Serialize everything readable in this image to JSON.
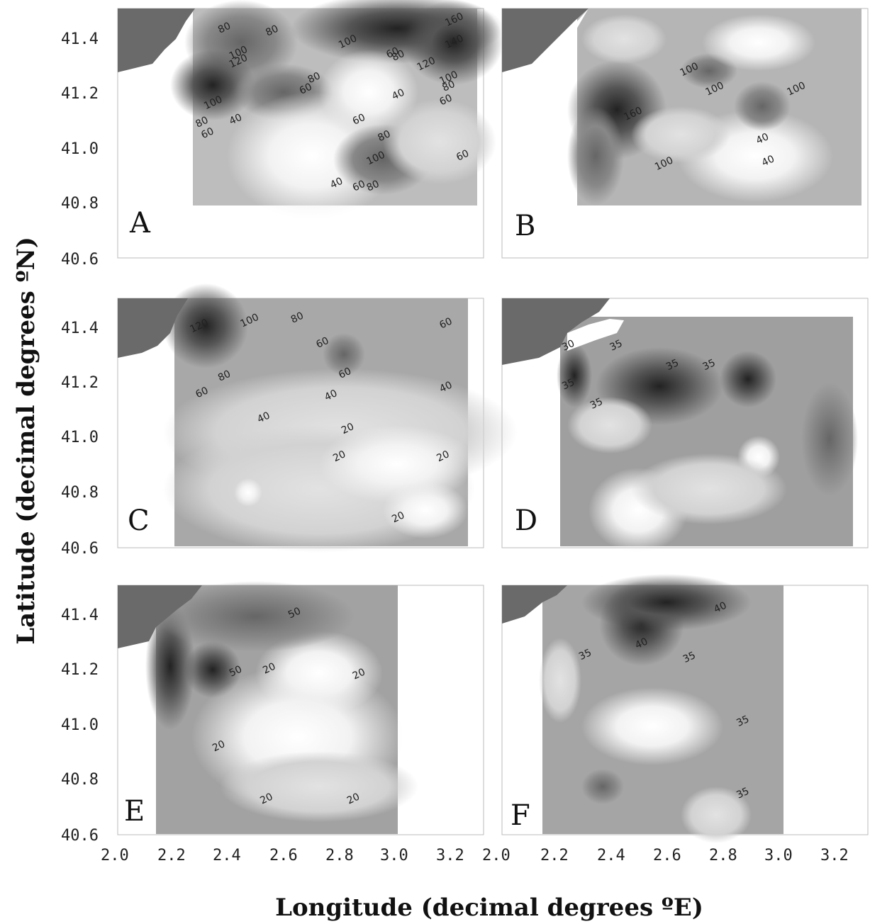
{
  "chart_data": {
    "type": "heatmap",
    "xlabel": "Longitude  (decimal degrees ºE)",
    "ylabel": "Latitude (decimal degrees ºN)",
    "xlim": [
      2.0,
      3.3
    ],
    "ylim": [
      40.6,
      41.5
    ],
    "x_ticks": [
      "2.0",
      "2.2",
      "2.4",
      "2.6",
      "2.8",
      "3.0",
      "3.2"
    ],
    "y_ticks": [
      "40.6",
      "40.8",
      "41.0",
      "41.2",
      "41.4"
    ],
    "grid": false,
    "panels": [
      {
        "label": "A",
        "data_extent": {
          "x": [
            2.27,
            3.27
          ],
          "y": [
            40.79,
            41.5
          ]
        },
        "contours": [
          {
            "text": "80",
            "x": 2.38,
            "y": 41.42
          },
          {
            "text": "80",
            "x": 2.55,
            "y": 41.41
          },
          {
            "text": "100",
            "x": 2.43,
            "y": 41.33
          },
          {
            "text": "120",
            "x": 2.43,
            "y": 41.3
          },
          {
            "text": "100",
            "x": 2.82,
            "y": 41.37
          },
          {
            "text": "60",
            "x": 2.98,
            "y": 41.33
          },
          {
            "text": "80",
            "x": 3.0,
            "y": 41.32
          },
          {
            "text": "120",
            "x": 3.1,
            "y": 41.29
          },
          {
            "text": "160",
            "x": 3.2,
            "y": 41.45
          },
          {
            "text": "140",
            "x": 3.2,
            "y": 41.37
          },
          {
            "text": "100",
            "x": 3.18,
            "y": 41.24
          },
          {
            "text": "80",
            "x": 3.18,
            "y": 41.21
          },
          {
            "text": "60",
            "x": 3.17,
            "y": 41.16
          },
          {
            "text": "60",
            "x": 2.67,
            "y": 41.2
          },
          {
            "text": "80",
            "x": 2.7,
            "y": 41.24
          },
          {
            "text": "100",
            "x": 2.34,
            "y": 41.15
          },
          {
            "text": "80",
            "x": 2.3,
            "y": 41.08
          },
          {
            "text": "60",
            "x": 2.32,
            "y": 41.04
          },
          {
            "text": "40",
            "x": 2.42,
            "y": 41.09
          },
          {
            "text": "40",
            "x": 3.0,
            "y": 41.18
          },
          {
            "text": "60",
            "x": 2.86,
            "y": 41.09
          },
          {
            "text": "80",
            "x": 2.95,
            "y": 41.03
          },
          {
            "text": "100",
            "x": 2.92,
            "y": 40.95
          },
          {
            "text": "60",
            "x": 3.23,
            "y": 40.96
          },
          {
            "text": "40",
            "x": 2.78,
            "y": 40.86
          },
          {
            "text": "60",
            "x": 2.86,
            "y": 40.85
          },
          {
            "text": "80",
            "x": 2.91,
            "y": 40.85
          }
        ]
      },
      {
        "label": "B",
        "data_extent": {
          "x": [
            2.27,
            3.27
          ],
          "y": [
            40.79,
            41.5
          ]
        },
        "contours": [
          {
            "text": "100",
            "x": 2.67,
            "y": 41.27
          },
          {
            "text": "100",
            "x": 2.76,
            "y": 41.2
          },
          {
            "text": "100",
            "x": 3.05,
            "y": 41.2
          },
          {
            "text": "160",
            "x": 2.47,
            "y": 41.11
          },
          {
            "text": "40",
            "x": 2.93,
            "y": 41.02
          },
          {
            "text": "40",
            "x": 2.95,
            "y": 40.94
          },
          {
            "text": "100",
            "x": 2.58,
            "y": 40.93
          }
        ]
      },
      {
        "label": "C",
        "data_extent": {
          "x": [
            2.21,
            3.27
          ],
          "y": [
            40.6,
            41.5
          ]
        },
        "contours": [
          {
            "text": "120",
            "x": 2.29,
            "y": 41.39
          },
          {
            "text": "100",
            "x": 2.47,
            "y": 41.41
          },
          {
            "text": "80",
            "x": 2.64,
            "y": 41.42
          },
          {
            "text": "60",
            "x": 2.73,
            "y": 41.33
          },
          {
            "text": "60",
            "x": 3.17,
            "y": 41.4
          },
          {
            "text": "80",
            "x": 2.38,
            "y": 41.21
          },
          {
            "text": "60",
            "x": 2.81,
            "y": 41.22
          },
          {
            "text": "60",
            "x": 2.3,
            "y": 41.15
          },
          {
            "text": "40",
            "x": 2.76,
            "y": 41.14
          },
          {
            "text": "40",
            "x": 3.17,
            "y": 41.17
          },
          {
            "text": "40",
            "x": 2.52,
            "y": 41.06
          },
          {
            "text": "20",
            "x": 2.82,
            "y": 41.02
          },
          {
            "text": "20",
            "x": 2.79,
            "y": 40.92
          },
          {
            "text": "20",
            "x": 3.16,
            "y": 40.92
          },
          {
            "text": "20",
            "x": 3.0,
            "y": 40.7
          }
        ]
      },
      {
        "label": "D",
        "data_extent": {
          "x": [
            2.2,
            3.27
          ],
          "y": [
            40.6,
            41.43
          ]
        },
        "contours": [
          {
            "text": "30",
            "x": 2.24,
            "y": 41.32
          },
          {
            "text": "35",
            "x": 2.41,
            "y": 41.32
          },
          {
            "text": "35",
            "x": 2.61,
            "y": 41.25
          },
          {
            "text": "35",
            "x": 2.74,
            "y": 41.25
          },
          {
            "text": "35",
            "x": 2.24,
            "y": 41.18
          },
          {
            "text": "35",
            "x": 2.34,
            "y": 41.11
          }
        ]
      },
      {
        "label": "E",
        "data_extent": {
          "x": [
            2.14,
            3.0
          ],
          "y": [
            40.6,
            41.5
          ]
        },
        "contours": [
          {
            "text": "50",
            "x": 2.63,
            "y": 41.39
          },
          {
            "text": "50",
            "x": 2.42,
            "y": 41.18
          },
          {
            "text": "20",
            "x": 2.54,
            "y": 41.19
          },
          {
            "text": "20",
            "x": 2.86,
            "y": 41.17
          },
          {
            "text": "20",
            "x": 2.36,
            "y": 40.91
          },
          {
            "text": "20",
            "x": 2.53,
            "y": 40.72
          },
          {
            "text": "20",
            "x": 2.84,
            "y": 40.72
          }
        ]
      },
      {
        "label": "F",
        "data_extent": {
          "x": [
            2.14,
            3.0
          ],
          "y": [
            40.6,
            41.5
          ]
        },
        "contours": [
          {
            "text": "40",
            "x": 2.78,
            "y": 41.41
          },
          {
            "text": "40",
            "x": 2.5,
            "y": 41.28
          },
          {
            "text": "35",
            "x": 2.3,
            "y": 41.24
          },
          {
            "text": "35",
            "x": 2.67,
            "y": 41.23
          },
          {
            "text": "35",
            "x": 2.86,
            "y": 41.0
          },
          {
            "text": "35",
            "x": 2.86,
            "y": 40.74
          }
        ]
      }
    ]
  }
}
